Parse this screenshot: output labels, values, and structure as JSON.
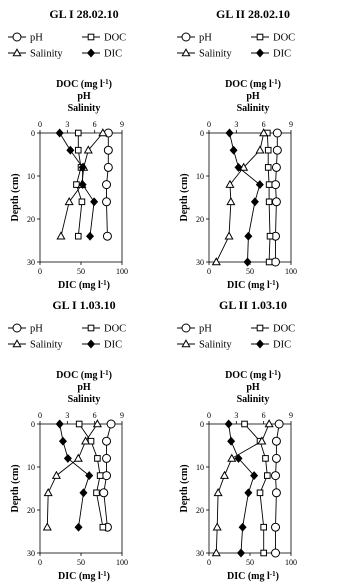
{
  "chart_data": [
    {
      "type": "line",
      "title": "GL I  28.02.10",
      "top_axis_label": [
        "DOC (mg l-1)",
        "pH",
        "Salinity"
      ],
      "bottom_axis_label": "DIC (mg l-1)",
      "ylabel": "Depth (cm)",
      "top_axis_range": [
        0,
        9
      ],
      "top_ticks": [
        0,
        3,
        6,
        9
      ],
      "bottom_axis_range": [
        0,
        100
      ],
      "bottom_ticks": [
        0,
        50,
        100
      ],
      "ylim": [
        0,
        30
      ],
      "y_inverted": true,
      "y_ticks": [
        0,
        10,
        20,
        30
      ],
      "legend": [
        "pH",
        "DOC",
        "Salinity",
        "DIC"
      ],
      "legend_placement": "top",
      "series": [
        {
          "name": "pH",
          "axis": "top",
          "marker": "circle-open",
          "points": [
            [
              7.5,
              0
            ],
            [
              7.5,
              4
            ],
            [
              7.5,
              8
            ],
            [
              7.3,
              12
            ],
            [
              7.3,
              16
            ],
            [
              7.4,
              24
            ]
          ]
        },
        {
          "name": "DOC",
          "axis": "top",
          "marker": "square-open",
          "points": [
            [
              4.2,
              0
            ],
            [
              4.2,
              4
            ],
            [
              4.5,
              8
            ],
            [
              4.0,
              12
            ],
            [
              4.6,
              16
            ],
            [
              4.2,
              24
            ]
          ]
        },
        {
          "name": "Salinity",
          "axis": "top",
          "marker": "triangle-open",
          "points": [
            [
              6.9,
              0
            ],
            [
              5.3,
              4
            ],
            [
              4.8,
              8
            ],
            [
              4.6,
              12
            ],
            [
              3.2,
              16
            ],
            [
              2.3,
              24
            ]
          ]
        },
        {
          "name": "DIC",
          "axis": "bottom",
          "marker": "diamond-filled",
          "points": [
            [
              24,
              0
            ],
            [
              37,
              4
            ],
            [
              52,
              8
            ],
            [
              52,
              12
            ],
            [
              66,
              16
            ],
            [
              61,
              24
            ]
          ]
        }
      ]
    },
    {
      "type": "line",
      "title": "GL II  28.02.10",
      "top_axis_label": [
        "DOC (mg l-1)",
        "pH",
        "Salinity"
      ],
      "bottom_axis_label": "DIC (mg l-1)",
      "ylabel": "Depth (cm)",
      "top_axis_range": [
        0,
        9
      ],
      "top_ticks": [
        0,
        3,
        6,
        9
      ],
      "bottom_axis_range": [
        0,
        100
      ],
      "bottom_ticks": [
        0,
        50,
        100
      ],
      "ylim": [
        0,
        30
      ],
      "y_inverted": true,
      "y_ticks": [
        0,
        10,
        20,
        30
      ],
      "legend": [
        "pH",
        "DOC",
        "Salinity",
        "DIC"
      ],
      "legend_placement": "top",
      "series": [
        {
          "name": "pH",
          "axis": "top",
          "marker": "circle-open",
          "points": [
            [
              7.5,
              0
            ],
            [
              7.5,
              4
            ],
            [
              7.4,
              8
            ],
            [
              7.3,
              12
            ],
            [
              7.4,
              16
            ],
            [
              7.3,
              24
            ],
            [
              7.3,
              30
            ]
          ]
        },
        {
          "name": "DOC",
          "axis": "top",
          "marker": "square-open",
          "points": [
            [
              6.4,
              0
            ],
            [
              6.5,
              4
            ],
            [
              6.5,
              8
            ],
            [
              6.6,
              12
            ],
            [
              6.6,
              16
            ],
            [
              6.7,
              24
            ],
            [
              6.6,
              30
            ]
          ]
        },
        {
          "name": "Salinity",
          "axis": "top",
          "marker": "triangle-open",
          "points": [
            [
              6.0,
              0
            ],
            [
              5.6,
              4
            ],
            [
              3.8,
              8
            ],
            [
              2.3,
              12
            ],
            [
              2.4,
              16
            ],
            [
              2.2,
              24
            ],
            [
              0.8,
              30
            ]
          ]
        },
        {
          "name": "DIC",
          "axis": "bottom",
          "marker": "diamond-filled",
          "points": [
            [
              25,
              0
            ],
            [
              30,
              4
            ],
            [
              36,
              8
            ],
            [
              62,
              12
            ],
            [
              56,
              16
            ],
            [
              48,
              24
            ],
            [
              47,
              30
            ]
          ]
        }
      ]
    },
    {
      "type": "line",
      "title": "GL I 1.03.10",
      "top_axis_label": [
        "DOC (mg l-1)",
        "pH",
        "Salinity"
      ],
      "bottom_axis_label": "DIC (mg l-1)",
      "ylabel": "Depth (cm)",
      "top_axis_range": [
        0,
        9
      ],
      "top_ticks": [
        0,
        3,
        6,
        9
      ],
      "bottom_axis_range": [
        0,
        100
      ],
      "bottom_ticks": [
        0,
        50,
        100
      ],
      "ylim": [
        0,
        30
      ],
      "y_inverted": true,
      "y_ticks": [
        0,
        10,
        20,
        30
      ],
      "legend": [
        "pH",
        "DOC",
        "Salinity",
        "DIC"
      ],
      "legend_placement": "top",
      "series": [
        {
          "name": "pH",
          "axis": "top",
          "marker": "circle-open",
          "points": [
            [
              7.8,
              0
            ],
            [
              7.3,
              4
            ],
            [
              7.3,
              8
            ],
            [
              7.3,
              12
            ],
            [
              7.0,
              16
            ],
            [
              7.4,
              24
            ]
          ]
        },
        {
          "name": "DOC",
          "axis": "top",
          "marker": "square-open",
          "points": [
            [
              4.3,
              0
            ],
            [
              5.6,
              4
            ],
            [
              6.3,
              8
            ],
            [
              6.6,
              12
            ],
            [
              6.2,
              16
            ],
            [
              6.9,
              24
            ]
          ]
        },
        {
          "name": "Salinity",
          "axis": "top",
          "marker": "triangle-open",
          "points": [
            [
              6.3,
              0
            ],
            [
              5.0,
              4
            ],
            [
              4.2,
              8
            ],
            [
              1.8,
              12
            ],
            [
              0.9,
              16
            ],
            [
              0.8,
              24
            ]
          ]
        },
        {
          "name": "DIC",
          "axis": "bottom",
          "marker": "diamond-filled",
          "points": [
            [
              24,
              0
            ],
            [
              28,
              4
            ],
            [
              34,
              8
            ],
            [
              60,
              12
            ],
            [
              53,
              16
            ],
            [
              47,
              24
            ]
          ]
        }
      ]
    },
    {
      "type": "line",
      "title": "GL II 1.03.10",
      "top_axis_label": [
        "DOC (mg l-1)",
        "pH",
        "Salinity"
      ],
      "bottom_axis_label": "DIC (mg l-1)",
      "ylabel": "Depth (cm)",
      "top_axis_range": [
        0,
        9
      ],
      "top_ticks": [
        0,
        3,
        6,
        9
      ],
      "bottom_axis_range": [
        0,
        100
      ],
      "bottom_ticks": [
        0,
        50,
        100
      ],
      "ylim": [
        0,
        30
      ],
      "y_inverted": true,
      "y_ticks": [
        0,
        10,
        20,
        30
      ],
      "legend": [
        "pH",
        "DOC",
        "Salinity",
        "DIC"
      ],
      "legend_placement": "top",
      "series": [
        {
          "name": "pH",
          "axis": "top",
          "marker": "circle-open",
          "points": [
            [
              7.7,
              0
            ],
            [
              7.4,
              4
            ],
            [
              7.4,
              8
            ],
            [
              7.3,
              12
            ],
            [
              7.4,
              16
            ],
            [
              7.3,
              24
            ],
            [
              7.3,
              30
            ]
          ]
        },
        {
          "name": "DOC",
          "axis": "top",
          "marker": "square-open",
          "points": [
            [
              3.9,
              0
            ],
            [
              5.6,
              4
            ],
            [
              6.2,
              8
            ],
            [
              6.4,
              12
            ],
            [
              5.6,
              16
            ],
            [
              6.0,
              24
            ],
            [
              6.0,
              30
            ]
          ]
        },
        {
          "name": "Salinity",
          "axis": "top",
          "marker": "triangle-open",
          "points": [
            [
              6.6,
              0
            ],
            [
              5.8,
              4
            ],
            [
              2.5,
              8
            ],
            [
              1.7,
              12
            ],
            [
              1.0,
              16
            ],
            [
              0.9,
              24
            ],
            [
              0.8,
              30
            ]
          ]
        },
        {
          "name": "DIC",
          "axis": "bottom",
          "marker": "diamond-filled",
          "points": [
            [
              24,
              0
            ],
            [
              27,
              4
            ],
            [
              36,
              8
            ],
            [
              55,
              12
            ],
            [
              48,
              16
            ],
            [
              41,
              24
            ],
            [
              39,
              30
            ]
          ]
        }
      ]
    }
  ]
}
